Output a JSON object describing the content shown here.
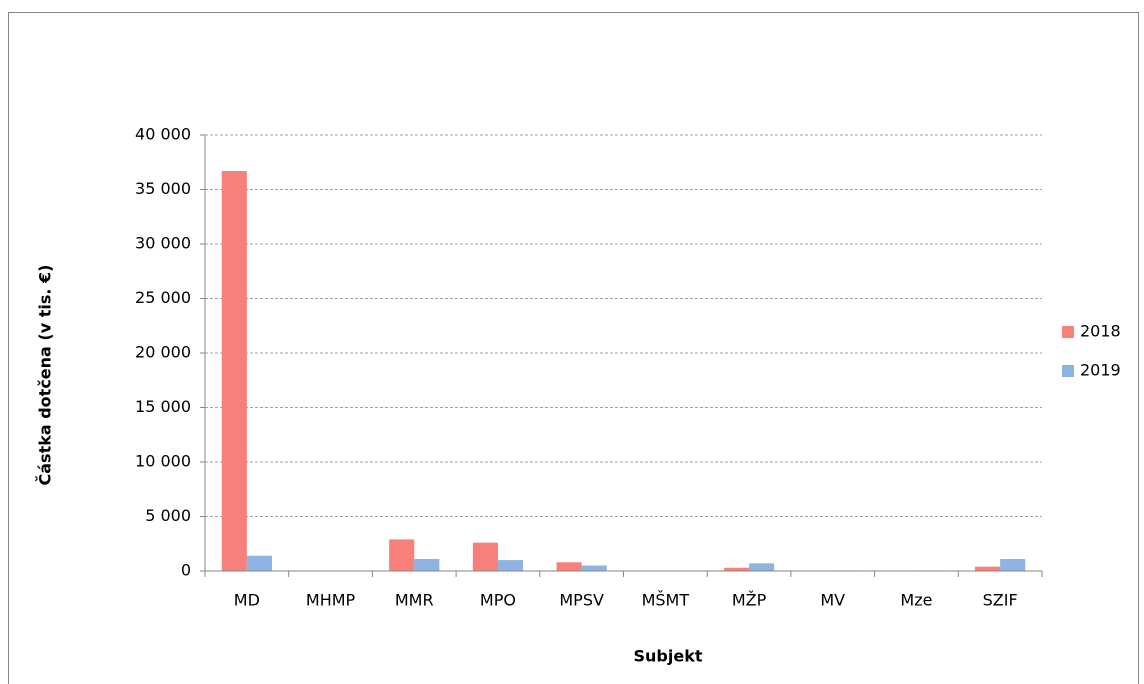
{
  "chart_data": {
    "type": "bar",
    "x_label": "Subjekt",
    "y_label": "Částka dotčena (v tis. €)",
    "categories": [
      "MD",
      "MHMP",
      "MMR",
      "MPO",
      "MPSV",
      "MŠMT",
      "MŽP",
      "MV",
      "Mze",
      "SZIF"
    ],
    "series": [
      {
        "name": "2018",
        "color": "#f8807a",
        "values": [
          36700,
          0,
          2900,
          2600,
          800,
          0,
          300,
          0,
          0,
          400
        ]
      },
      {
        "name": "2019",
        "color": "#8db4e2",
        "values": [
          1400,
          0,
          1100,
          1000,
          500,
          0,
          700,
          50,
          50,
          1100
        ]
      }
    ],
    "ylim": [
      0,
      40000
    ],
    "yticks": [
      0,
      {
        "value": 5000,
        "label": "5 000"
      },
      {
        "value": 10000,
        "label": "10 000"
      },
      {
        "value": 15000,
        "label": "15 000"
      },
      {
        "value": 20000,
        "label": "20 000"
      },
      {
        "value": 25000,
        "label": "25 000"
      },
      {
        "value": 30000,
        "label": "30 000"
      },
      {
        "value": 35000,
        "label": "35 000"
      },
      {
        "value": 40000,
        "label": "40 000"
      }
    ],
    "grid": true,
    "legend": "right"
  }
}
